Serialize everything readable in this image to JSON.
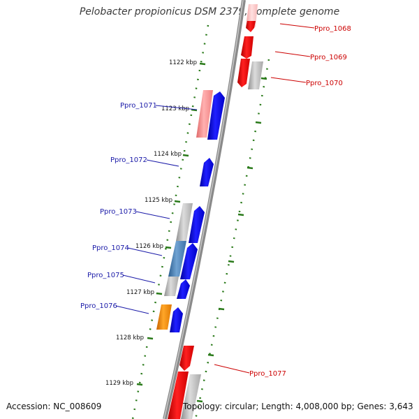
{
  "title": "Pelobacter propionicus DSM 2379, complete genome",
  "footer": {
    "accession": "Accession: NC_008609",
    "summary": "Topology: circular; Length: 4,008,000 bp; Genes: 3,643"
  },
  "colors": {
    "backbone": "#888888",
    "tick": "#2a7a1a",
    "forward_gene": "#0000ee",
    "reverse_gene": "#ee0000",
    "gray_gene": "#b8b8b8",
    "pink_gene": "#f09090",
    "orange_gene": "#f08c00",
    "steel_gene": "#4a82b8",
    "label_blue": "#1a1aa8",
    "label_red": "#cc0000"
  },
  "scale_labels": [
    {
      "text": "1122 kbp"
    },
    {
      "text": "1123 kbp"
    },
    {
      "text": "1124 kbp"
    },
    {
      "text": "1125 kbp"
    },
    {
      "text": "1126 kbp"
    },
    {
      "text": "1127 kbp"
    },
    {
      "text": "1128 kbp"
    },
    {
      "text": "1129 kbp"
    }
  ],
  "gene_labels": [
    {
      "text": "Ppro_1068",
      "side": "right"
    },
    {
      "text": "Ppro_1069",
      "side": "right"
    },
    {
      "text": "Ppro_1070",
      "side": "right"
    },
    {
      "text": "Ppro_1071",
      "side": "left"
    },
    {
      "text": "Ppro_1072",
      "side": "left"
    },
    {
      "text": "Ppro_1073",
      "side": "left"
    },
    {
      "text": "Ppro_1074",
      "side": "left"
    },
    {
      "text": "Ppro_1075",
      "side": "left"
    },
    {
      "text": "Ppro_1076",
      "side": "left"
    },
    {
      "text": "Ppro_1077",
      "side": "right"
    }
  ]
}
